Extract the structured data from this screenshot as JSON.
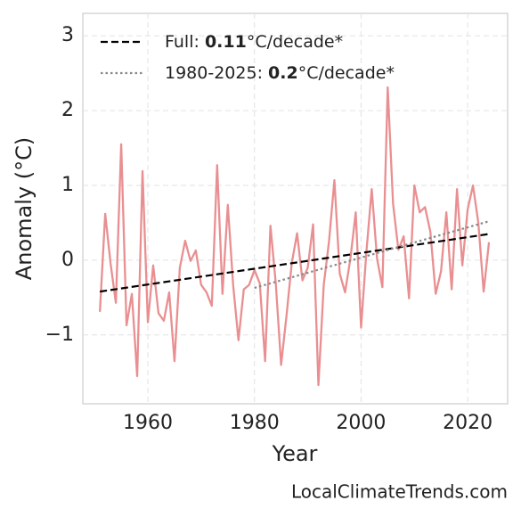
{
  "chart_data": {
    "type": "line",
    "footer": "LocalClimateTrends.com",
    "xlabel": "Year",
    "ylabel": "Anomaly (°C)",
    "xlim": [
      1947.8,
      2027.5
    ],
    "ylim": [
      -1.92,
      3.3
    ],
    "xticks": [
      1960,
      1980,
      2000,
      2020
    ],
    "yticks": [
      {
        "value": -1,
        "label": "−1"
      },
      0,
      1,
      2,
      3
    ],
    "grid": true,
    "x": [
      1951,
      1952,
      1953,
      1954,
      1955,
      1956,
      1957,
      1958,
      1959,
      1960,
      1961,
      1962,
      1963,
      1964,
      1965,
      1966,
      1967,
      1968,
      1969,
      1970,
      1971,
      1972,
      1973,
      1974,
      1975,
      1976,
      1977,
      1978,
      1979,
      1980,
      1981,
      1982,
      1983,
      1984,
      1985,
      1986,
      1987,
      1988,
      1989,
      1990,
      1991,
      1992,
      1993,
      1994,
      1995,
      1996,
      1997,
      1998,
      1999,
      2000,
      2001,
      2002,
      2003,
      2004,
      2005,
      2006,
      2007,
      2008,
      2009,
      2010,
      2011,
      2012,
      2013,
      2014,
      2015,
      2016,
      2017,
      2018,
      2019,
      2020,
      2021,
      2022,
      2023,
      2024
    ],
    "series": [
      {
        "color": "#e8898b",
        "style": "solid",
        "values": [
          -0.69,
          0.62,
          -0.04,
          -0.57,
          1.55,
          -0.87,
          -0.45,
          -1.55,
          1.19,
          -0.83,
          -0.07,
          -0.71,
          -0.81,
          -0.43,
          -1.35,
          -0.1,
          0.26,
          -0.01,
          0.13,
          -0.33,
          -0.43,
          -0.61,
          1.27,
          -0.45,
          0.74,
          -0.33,
          -1.07,
          -0.39,
          -0.33,
          -0.13,
          -0.31,
          -1.35,
          0.46,
          -0.31,
          -1.4,
          -0.75,
          -0.04,
          0.36,
          -0.27,
          -0.1,
          0.48,
          -1.67,
          -0.33,
          0.26,
          1.07,
          -0.18,
          -0.43,
          0.02,
          0.64,
          -0.9,
          0.11,
          0.95,
          0.02,
          -0.36,
          2.31,
          0.76,
          0.14,
          0.32,
          -0.51,
          1.0,
          0.64,
          0.71,
          0.38,
          -0.45,
          -0.15,
          0.64,
          -0.39,
          0.95,
          -0.07,
          0.68,
          1.0,
          0.5,
          -0.42,
          0.24
        ]
      },
      {
        "color": "#000000",
        "style": "dashed",
        "x": [
          1951,
          2024
        ],
        "values": [
          -0.42,
          0.35
        ],
        "legend_label": {
          "prefix": "Full: ",
          "rate": 0.11,
          "suffix": "°C/decade*"
        }
      },
      {
        "color": "#888888",
        "style": "dotted",
        "x": [
          1980,
          2024
        ],
        "values": [
          -0.37,
          0.52
        ],
        "legend_label": {
          "prefix": "1980-2025: ",
          "rate": 0.2,
          "suffix": "°C/decade*"
        }
      }
    ]
  }
}
